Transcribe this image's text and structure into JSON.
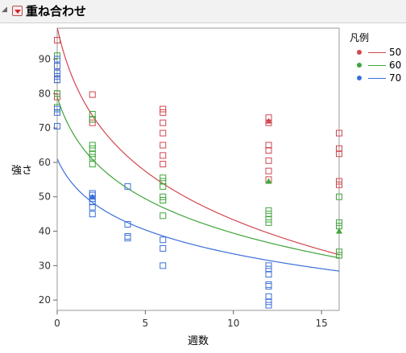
{
  "window": {
    "title": "重ね合わせ"
  },
  "chart_data": {
    "type": "scatter",
    "xlabel": "週数",
    "ylabel": "強さ",
    "xlim": [
      0,
      16
    ],
    "ylim": [
      17,
      99
    ],
    "xticks": [
      0,
      5,
      10,
      15
    ],
    "yticks": [
      20,
      30,
      40,
      50,
      60,
      70,
      80,
      90
    ],
    "grid": false,
    "legend": {
      "title": "凡例",
      "position": "right"
    },
    "series": [
      {
        "name": "50",
        "color": "#d0474f",
        "curve": {
          "a": 99.2,
          "b": 23.3
        },
        "points": [
          [
            0,
            95.5
          ],
          [
            0,
            90
          ],
          [
            0,
            88
          ],
          [
            0,
            86
          ],
          [
            0,
            84
          ],
          [
            0,
            80
          ],
          [
            0,
            79
          ],
          [
            2,
            79.7
          ],
          [
            2,
            72.5
          ],
          [
            2,
            71.5
          ],
          [
            6,
            75.5
          ],
          [
            6,
            74.5
          ],
          [
            6,
            71.5
          ],
          [
            6,
            68.5
          ],
          [
            6,
            65
          ],
          [
            6,
            62
          ],
          [
            6,
            59.5
          ],
          [
            12,
            73
          ],
          [
            12,
            71.5
          ],
          [
            12,
            65
          ],
          [
            12,
            63.5
          ],
          [
            12,
            60.5
          ],
          [
            12,
            57.5
          ],
          [
            12,
            55
          ],
          [
            16,
            68.5
          ],
          [
            16,
            64
          ],
          [
            16,
            62.5
          ],
          [
            16,
            54.5
          ],
          [
            16,
            53.5
          ]
        ],
        "filled": [
          [
            12,
            72
          ]
        ]
      },
      {
        "name": "60",
        "color": "#3fa53a",
        "curve": {
          "a": 79.0,
          "b": 16.5
        },
        "points": [
          [
            0,
            91
          ],
          [
            0,
            90
          ],
          [
            0,
            80
          ],
          [
            0,
            76
          ],
          [
            2,
            74
          ],
          [
            2,
            72.5
          ],
          [
            2,
            65
          ],
          [
            2,
            64
          ],
          [
            2,
            62.5
          ],
          [
            2,
            61.5
          ],
          [
            2,
            59.5
          ],
          [
            6,
            55.5
          ],
          [
            6,
            54.5
          ],
          [
            6,
            53
          ],
          [
            6,
            50
          ],
          [
            6,
            49
          ],
          [
            6,
            44.5
          ],
          [
            12,
            46
          ],
          [
            12,
            45
          ],
          [
            12,
            43.5
          ],
          [
            12,
            42.5
          ],
          [
            16,
            50
          ],
          [
            16,
            42.5
          ],
          [
            16,
            41.5
          ],
          [
            16,
            34
          ],
          [
            16,
            33
          ]
        ],
        "filled": [
          [
            12,
            54.5
          ],
          [
            16,
            40
          ]
        ]
      },
      {
        "name": "70",
        "color": "#3a6fd8",
        "curve": {
          "a": 61.0,
          "b": 11.5
        },
        "points": [
          [
            0,
            90
          ],
          [
            0,
            88
          ],
          [
            0,
            86
          ],
          [
            0,
            85
          ],
          [
            0,
            84
          ],
          [
            0,
            75.5
          ],
          [
            0,
            74.5
          ],
          [
            0,
            70.5
          ],
          [
            2,
            51
          ],
          [
            2,
            50.5
          ],
          [
            2,
            49.5
          ],
          [
            2,
            48.5
          ],
          [
            2,
            47
          ],
          [
            2,
            45
          ],
          [
            4,
            53
          ],
          [
            4,
            42
          ],
          [
            4,
            38.5
          ],
          [
            4,
            38
          ],
          [
            6,
            37.5
          ],
          [
            6,
            35
          ],
          [
            6,
            30
          ],
          [
            12,
            30
          ],
          [
            12,
            29
          ],
          [
            12,
            27.5
          ],
          [
            12,
            24.5
          ],
          [
            12,
            24
          ],
          [
            12,
            21
          ],
          [
            12,
            19.5
          ],
          [
            12,
            18.5
          ]
        ],
        "filled": [
          [
            2,
            50
          ]
        ]
      }
    ]
  }
}
